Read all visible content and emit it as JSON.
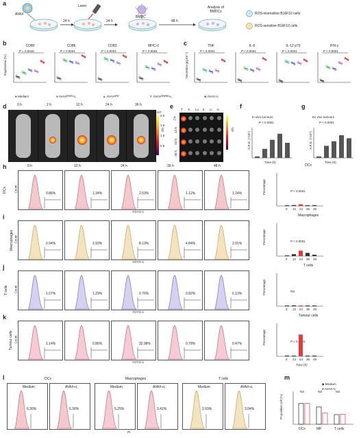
{
  "panels": {
    "a": "a",
    "b": "b",
    "c": "c",
    "d": "d",
    "e": "e",
    "f": "f",
    "g": "g",
    "h": "h",
    "i": "i",
    "j": "j",
    "k": "k",
    "l": "l",
    "m": "m"
  },
  "schematic": {
    "avax": "AVAX",
    "laser": "Laser",
    "bmdc": "BMDC",
    "t1": "24 h",
    "t2": "24 h",
    "t3": "48 h",
    "analysis": "Analysis of BMDCs",
    "legend": [
      "ROS-insensitive B16F10 cells",
      "ROS-sensitive B16F10 cells"
    ]
  },
  "panel_b": {
    "ylabel": "Expression (%)",
    "charts": [
      {
        "title": "CD80",
        "p": "P = 0.0016"
      },
      {
        "title": "CD86",
        "p": "P < 0.0001"
      },
      {
        "title": "CD83",
        "p": "P < 0.0001"
      },
      {
        "title": "MHC-II",
        "p": "P < 0.0001"
      }
    ]
  },
  "panel_c": {
    "ylabel": "Secretion (pg ml⁻¹)",
    "charts": [
      {
        "title": "TNF",
        "p": "P < 0.0001"
      },
      {
        "title": "IL-6",
        "p": "P < 0.0001"
      },
      {
        "title": "IL-12 p70",
        "p": "P < 0.0001"
      },
      {
        "title": "IFN-γ",
        "p": "P < 0.0001"
      }
    ]
  },
  "group_legend": [
    "Medium",
    "AVAXᴬᴾᵂᴴ+L",
    "AVAXᴬᴾᵂ",
    "AVAXᴬᴾᵂᴴᴹ+L",
    "AVAX+L"
  ],
  "group_colors": [
    "#222222",
    "#2db34a",
    "#3a4fd8",
    "#b44fd0",
    "#e23b3b"
  ],
  "panel_d": {
    "times": [
      "0 h",
      "2 h",
      "12 h",
      "24 h",
      "36 h"
    ],
    "scale": "p/s",
    "scale_ticks": [
      "2.0",
      "1.5",
      "1.0",
      "0.5"
    ],
    "scale_mult": "×10⁸"
  },
  "panel_e": {
    "organs": [
      "T",
      "K",
      "Lu",
      "S",
      "Li",
      "H"
    ],
    "rows": [
      "2 h",
      "12 h",
      "24 h",
      "36 h"
    ],
    "scale": "p/s",
    "scale_mult": "×10⁹"
  },
  "panel_f": {
    "title": "In vivo tumours",
    "ylabel": "A.R.E. (×10⁶)",
    "xlabel": "Time (h)",
    "p": "P < 0.0001"
  },
  "panel_g": {
    "title": "Ex vivo tumours",
    "ylabel": "A.R.E. (×10⁶)",
    "xlabel": "Time (h)",
    "p": "P < 0.0001"
  },
  "flow": {
    "times": [
      "0 h",
      "12 h",
      "24 h",
      "36 h",
      "48 h"
    ],
    "xlabel": "YOYO-1",
    "ylabel": "Count",
    "rows": [
      {
        "key": "h",
        "label": "DCs",
        "values": [
          "0.86%",
          "1.34%",
          "2.53%",
          "1.12%",
          "1.24%"
        ],
        "color": "#f4c9cd",
        "stroke": "#c77078"
      },
      {
        "key": "i",
        "label": "Macrophages",
        "values": [
          "0.94%",
          "2.93%",
          "8.13%",
          "4.84%",
          "2.01%"
        ],
        "color": "#f3e3bf",
        "stroke": "#c7a460"
      },
      {
        "key": "j",
        "label": "T cells",
        "values": [
          "1.07%",
          "1.29%",
          "0.76%",
          "0.82%",
          "0.13%"
        ],
        "color": "#d4d2f0",
        "stroke": "#7e78c0"
      },
      {
        "key": "k",
        "label": "Tumour cells",
        "values": [
          "1.14%",
          "0.86%",
          "32.98%",
          "0.78%",
          "0.47%"
        ],
        "color": "#f5ccd6",
        "stroke": "#cc6c86"
      }
    ]
  },
  "bars": {
    "ylabel": "Percentage",
    "xlabel": "Time (h)",
    "xticks": [
      "0",
      "12",
      "24",
      "36",
      "48"
    ],
    "charts": [
      {
        "title": "DCs",
        "p": "P < 0.0001",
        "values": [
          0.86,
          1.34,
          2.53,
          1.12,
          1.24
        ],
        "ymax": 50
      },
      {
        "title": "Macrophages",
        "p": "P < 0.0001",
        "values": [
          0.94,
          2.93,
          8.13,
          4.84,
          2.01
        ],
        "ymax": 50
      },
      {
        "title": "T cells",
        "p": "NS",
        "values": [
          1.07,
          1.29,
          0.76,
          0.82,
          0.13
        ],
        "ymax": 50
      },
      {
        "title": "Tumour cells",
        "p": "P < 0.0001",
        "values": [
          1.14,
          0.86,
          32.98,
          0.78,
          0.47
        ],
        "ymax": 50
      }
    ]
  },
  "panel_l": {
    "groups": [
      {
        "title": "DCs",
        "items": [
          {
            "label": "Medium",
            "value": "6.30%"
          },
          {
            "label": "AVAX+L",
            "value": "6.36%"
          }
        ],
        "color": "#f4c9cd",
        "stroke": "#c77078"
      },
      {
        "title": "Macrophages",
        "items": [
          {
            "label": "Medium",
            "value": "5.25%"
          },
          {
            "label": "AVAX+L",
            "value": "3.41%"
          }
        ],
        "color": "#f5ccd6",
        "stroke": "#c77078"
      },
      {
        "title": "T cells",
        "items": [
          {
            "label": "Medium",
            "value": "2.93%"
          },
          {
            "label": "AVAX+L",
            "value": "3.04%"
          }
        ],
        "color": "#f3e3bf",
        "stroke": "#c7a460"
      }
    ],
    "xlabel": "PI"
  },
  "panel_m": {
    "ylabel": "PI-positive cell (%)",
    "legend": [
      "Medium",
      "AVAX+L"
    ],
    "cats": [
      "DCs",
      "MP",
      "T cells"
    ],
    "ns": "NS",
    "chart_data": {
      "type": "bar",
      "categories": [
        "DCs",
        "MP",
        "T cells"
      ],
      "series": [
        {
          "name": "Medium",
          "values": [
            6.3,
            5.25,
            2.93
          ]
        },
        {
          "name": "AVAX+L",
          "values": [
            6.36,
            3.41,
            3.04
          ]
        }
      ]
    }
  }
}
